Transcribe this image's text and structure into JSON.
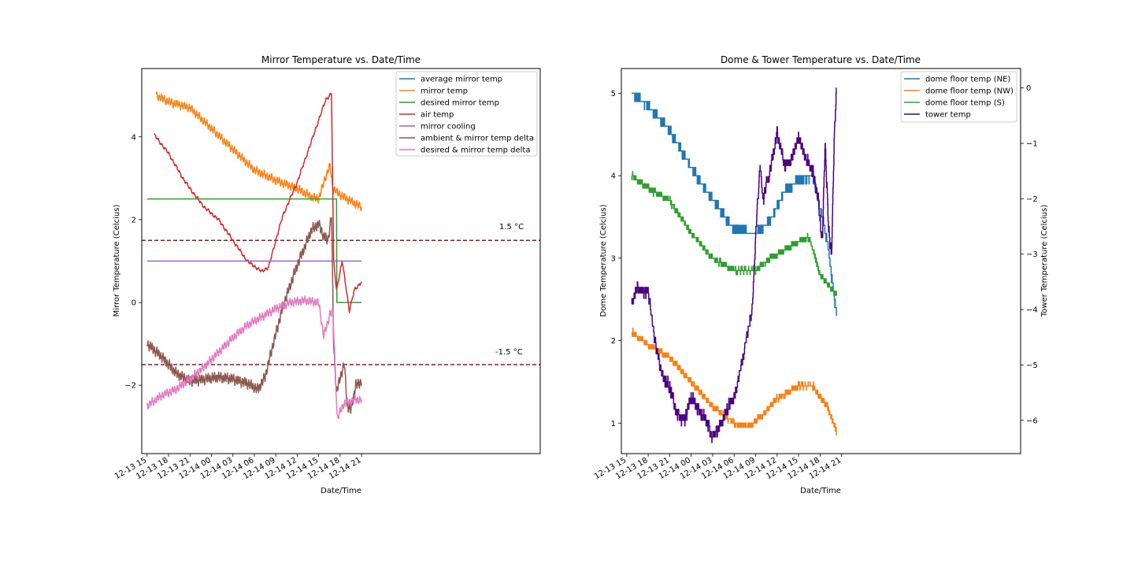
{
  "chart_data": [
    {
      "type": "line",
      "title": "Mirror Temperature vs. Date/Time",
      "xlabel": "Date/Time",
      "ylabel": "Mirror Temperature (Celcius)",
      "x_unit": "hours since 12-13 15:00",
      "xlim": [
        -0.75,
        55.0
      ],
      "ylim": [
        -3.65,
        5.65
      ],
      "x_tick_values": [
        0,
        3,
        6,
        9,
        12,
        15,
        18,
        21,
        24,
        27,
        30
      ],
      "x_tick_labels": [
        "12-13 15",
        "12-13 18",
        "12-13 21",
        "12-14 00",
        "12-14 03",
        "12-14 06",
        "12-14 09",
        "12-14 12",
        "12-14 15",
        "12-14 18",
        "12-14 21"
      ],
      "y_tick_values": [
        -2,
        0,
        2,
        4
      ],
      "y_tick_labels": [
        "−2",
        "0",
        "2",
        "4"
      ],
      "legend_position": "top-right",
      "legend": [
        "average mirror temp",
        "mirror temp",
        "desired mirror temp",
        "air temp",
        "mirror cooling",
        "ambient & mirror temp delta",
        "desired & mirror temp delta"
      ],
      "series": [
        {
          "name": "average mirror temp",
          "color": "#1f77b4",
          "x": [],
          "y": []
        },
        {
          "name": "mirror temp",
          "color": "#ff7f0e",
          "x": [
            1.3,
            3,
            6,
            9,
            12,
            15,
            18,
            21,
            23,
            24,
            25,
            25.6,
            26,
            27,
            28,
            29,
            30
          ],
          "y": [
            5.0,
            4.85,
            4.7,
            4.2,
            3.7,
            3.2,
            2.95,
            2.75,
            2.55,
            2.5,
            3.05,
            3.3,
            2.75,
            2.6,
            2.5,
            2.4,
            2.3
          ],
          "noise": 0.12,
          "noise_period": 0.35
        },
        {
          "name": "desired mirror temp",
          "color": "#2ca02c",
          "x": [
            0,
            26.5,
            26.55,
            30
          ],
          "y": [
            2.5,
            2.5,
            0.0,
            0.0
          ],
          "noise": 0
        },
        {
          "name": "air temp",
          "color": "#d62728",
          "x": [
            1.0,
            3,
            5,
            6,
            8,
            10,
            12,
            14,
            16,
            17,
            18,
            19,
            21,
            23,
            25,
            25.8,
            26.1,
            26.5,
            27.3,
            27.8,
            28.3,
            29,
            30
          ],
          "y": [
            4.05,
            3.6,
            3.0,
            2.75,
            2.3,
            2.0,
            1.5,
            1.0,
            0.75,
            0.85,
            1.5,
            2.1,
            2.9,
            3.9,
            4.9,
            5.05,
            1.0,
            0.3,
            1.0,
            0.4,
            -0.2,
            0.3,
            0.5
          ],
          "noise": 0.05,
          "noise_period": 0.5
        },
        {
          "name": "mirror cooling",
          "color": "#9467bd",
          "x": [
            0,
            30
          ],
          "y": [
            1.0,
            1.0
          ],
          "noise": 0
        },
        {
          "name": "ambient & mirror temp delta",
          "color": "#8c564b",
          "x": [
            0,
            2,
            4,
            6,
            8,
            10,
            12,
            14,
            15.5,
            16.5,
            17.5,
            19,
            21,
            23,
            24,
            24.7,
            25.3,
            25.8,
            26.1,
            26.5,
            27,
            27.6,
            28,
            28.5,
            29.2,
            30
          ],
          "y": [
            -1.0,
            -1.3,
            -1.7,
            -1.9,
            -1.85,
            -1.8,
            -1.85,
            -1.95,
            -2.1,
            -1.8,
            -1.1,
            -0.1,
            0.9,
            1.75,
            1.9,
            1.6,
            1.5,
            2.1,
            -1.0,
            -2.2,
            -1.8,
            -1.5,
            -2.5,
            -2.6,
            -2.0,
            -1.9
          ],
          "noise": 0.15,
          "noise_period": 0.3
        },
        {
          "name": "desired & mirror temp delta",
          "color": "#e377c2",
          "x": [
            0,
            2,
            4,
            6,
            8,
            10,
            12,
            14,
            16,
            18,
            20,
            22,
            24,
            24.7,
            25.2,
            25.6,
            26,
            26.3,
            26.6,
            27.5,
            29,
            30
          ],
          "y": [
            -2.5,
            -2.25,
            -2.1,
            -1.85,
            -1.55,
            -1.2,
            -0.85,
            -0.55,
            -0.35,
            -0.15,
            0.0,
            0.05,
            0.0,
            -0.8,
            -0.55,
            -0.25,
            -0.25,
            -1.5,
            -2.8,
            -2.45,
            -2.35,
            -2.35
          ],
          "noise": 0.12,
          "noise_period": 0.35
        }
      ],
      "hlines": [
        {
          "y": 1.5,
          "label": "1.5 °C",
          "color": "#8b1a1a"
        },
        {
          "y": -1.5,
          "label": "-1.5 °C",
          "color": "#8b1a1a"
        }
      ]
    },
    {
      "type": "line",
      "title": "Dome & Tower Temperature vs. Date/Time",
      "xlabel": "Date/Time",
      "ylabel": "Dome Temperature (Celcius)",
      "y2label": "Tower Temperature (Celcius)",
      "x_unit": "hours since 12-13 15:00",
      "xlim": [
        -0.75,
        55.0
      ],
      "ylim": [
        0.63,
        5.3
      ],
      "y2lim": [
        -6.6,
        0.35
      ],
      "x_tick_values": [
        0,
        3,
        6,
        9,
        12,
        15,
        18,
        21,
        24,
        27,
        30
      ],
      "x_tick_labels": [
        "12-13 15",
        "12-13 18",
        "12-13 21",
        "12-14 00",
        "12-14 03",
        "12-14 06",
        "12-14 09",
        "12-14 12",
        "12-14 15",
        "12-14 18",
        "12-14 21"
      ],
      "y_tick_values": [
        1,
        2,
        3,
        4,
        5
      ],
      "y_tick_labels": [
        "1",
        "2",
        "3",
        "4",
        "5"
      ],
      "y2_tick_values": [
        0,
        -1,
        -2,
        -3,
        -4,
        -5,
        -6
      ],
      "y2_tick_labels": [
        "0",
        "−1",
        "−2",
        "−3",
        "−4",
        "−5",
        "−6"
      ],
      "legend_position": "top-right",
      "legend": [
        "dome floor temp (NE)",
        "dome floor temp (NW)",
        "dome floor temp (S)",
        "tower temp"
      ],
      "series": [
        {
          "name": "dome floor temp (NE)",
          "color": "#1f77b4",
          "axis": "left",
          "x": [
            0.7,
            3,
            6,
            9,
            12,
            15,
            18,
            20,
            22,
            24,
            26,
            28,
            29.3
          ],
          "y": [
            5.0,
            4.85,
            4.55,
            4.1,
            3.7,
            3.35,
            3.3,
            3.45,
            3.8,
            3.95,
            4.0,
            3.2,
            2.3
          ],
          "step": 0.1,
          "noise": 0.05,
          "noise_period": 0.15
        },
        {
          "name": "dome floor temp (NW)",
          "color": "#ff7f0e",
          "axis": "left",
          "x": [
            0.7,
            3,
            6,
            9,
            12,
            15,
            17,
            19,
            21,
            24,
            26,
            28,
            29.3
          ],
          "y": [
            2.1,
            1.95,
            1.8,
            1.5,
            1.2,
            1.0,
            0.95,
            1.1,
            1.3,
            1.45,
            1.45,
            1.2,
            0.9
          ],
          "step": 0.05,
          "noise": 0.04,
          "noise_period": 0.15
        },
        {
          "name": "dome floor temp (S)",
          "color": "#2ca02c",
          "axis": "left",
          "x": [
            0.7,
            3,
            6,
            9,
            12,
            15,
            18,
            20,
            22,
            24,
            25.5,
            27,
            29.3
          ],
          "y": [
            4.0,
            3.85,
            3.7,
            3.3,
            3.0,
            2.85,
            2.85,
            3.0,
            3.1,
            3.2,
            3.25,
            2.8,
            2.55
          ],
          "step": 0.05,
          "noise": 0.04,
          "noise_period": 0.15
        },
        {
          "name": "tower temp",
          "color": "#4b0082",
          "axis": "right",
          "x": [
            0.7,
            1.5,
            3,
            4,
            5,
            6,
            7,
            8,
            9,
            10,
            11,
            12,
            13,
            14,
            15,
            16,
            17.5,
            18.2,
            18.6,
            19,
            20,
            21,
            22,
            23,
            24,
            25,
            26,
            26.7,
            27.3,
            27.7,
            28.2,
            28.6,
            29,
            29.3
          ],
          "y": [
            -3.9,
            -3.6,
            -3.7,
            -4.6,
            -5.2,
            -5.4,
            -5.9,
            -6.0,
            -5.6,
            -5.8,
            -6.0,
            -6.3,
            -6.1,
            -5.8,
            -5.6,
            -5.0,
            -4.0,
            -2.2,
            -1.4,
            -2.0,
            -1.5,
            -0.8,
            -1.4,
            -1.3,
            -0.9,
            -1.3,
            -1.5,
            -2.0,
            -2.8,
            -1.0,
            -2.6,
            -3.0,
            -0.8,
            0.05
          ],
          "step": 0.1,
          "noise": 0.12,
          "noise_period": 0.25
        }
      ]
    }
  ]
}
